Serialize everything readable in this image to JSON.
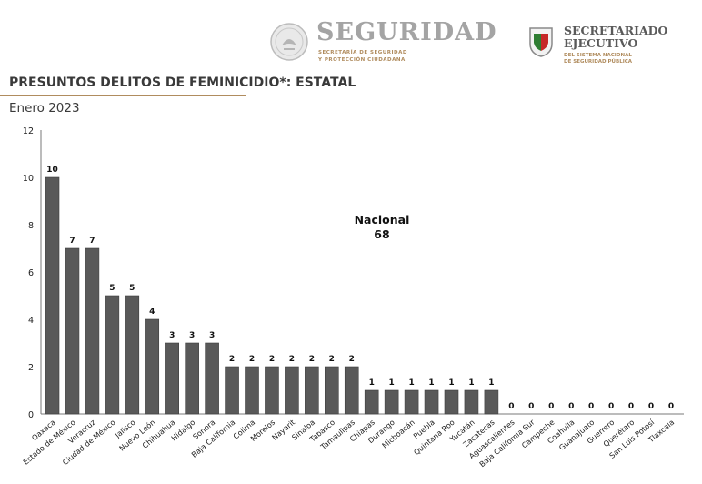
{
  "header": {
    "seg_title": "SEGURIDAD",
    "seg_sub1": "SECRETARÍA DE SEGURIDAD",
    "seg_sub2": "Y PROTECCIÓN CIUDADANA",
    "sesnsp_title1": "SECRETARIADO",
    "sesnsp_title2": "EJECUTIVO",
    "sesnsp_sub1": "DEL SISTEMA NACIONAL",
    "sesnsp_sub2": "DE SEGURIDAD PÚBLICA",
    "seal_icon": "mexico-coat-of-arms-seal",
    "shield_icon": "sesnsp-shield-logo"
  },
  "title": "PRESUNTOS DELITOS DE FEMINICIDIO*: ESTATAL",
  "subtitle": "Enero 2023",
  "annotation": {
    "label": "Nacional",
    "value": "68"
  },
  "colors": {
    "bar": "#595959",
    "bar_edge": "#3f3f3f",
    "accent": "#b08c5e"
  },
  "chart_data": {
    "type": "bar",
    "title": "PRESUNTOS DELITOS DE FEMINICIDIO*: ESTATAL",
    "subtitle": "Enero 2023",
    "xlabel": "",
    "ylabel": "",
    "ylim": [
      0,
      12
    ],
    "yticks": [
      0,
      2,
      4,
      6,
      8,
      10,
      12
    ],
    "grid": false,
    "categories": [
      "Oaxaca",
      "Estado de México",
      "Veracruz",
      "Ciudad de México",
      "Jalisco",
      "Nuevo León",
      "Chihuahua",
      "Hidalgo",
      "Sonora",
      "Baja California",
      "Colima",
      "Morelos",
      "Nayarit",
      "Sinaloa",
      "Tabasco",
      "Tamaulipas",
      "Chiapas",
      "Durango",
      "Michoacán",
      "Puebla",
      "Quintana Roo",
      "Yucatán",
      "Zacatecas",
      "Aguascalientes",
      "Baja California Sur",
      "Campeche",
      "Coahuila",
      "Guanajuato",
      "Guerrero",
      "Querétaro",
      "San Luis Potosí",
      "Tlaxcala"
    ],
    "values": [
      10,
      7,
      7,
      5,
      5,
      4,
      3,
      3,
      3,
      2,
      2,
      2,
      2,
      2,
      2,
      2,
      1,
      1,
      1,
      1,
      1,
      1,
      1,
      0,
      0,
      0,
      0,
      0,
      0,
      0,
      0,
      0
    ],
    "data_labels": true
  }
}
